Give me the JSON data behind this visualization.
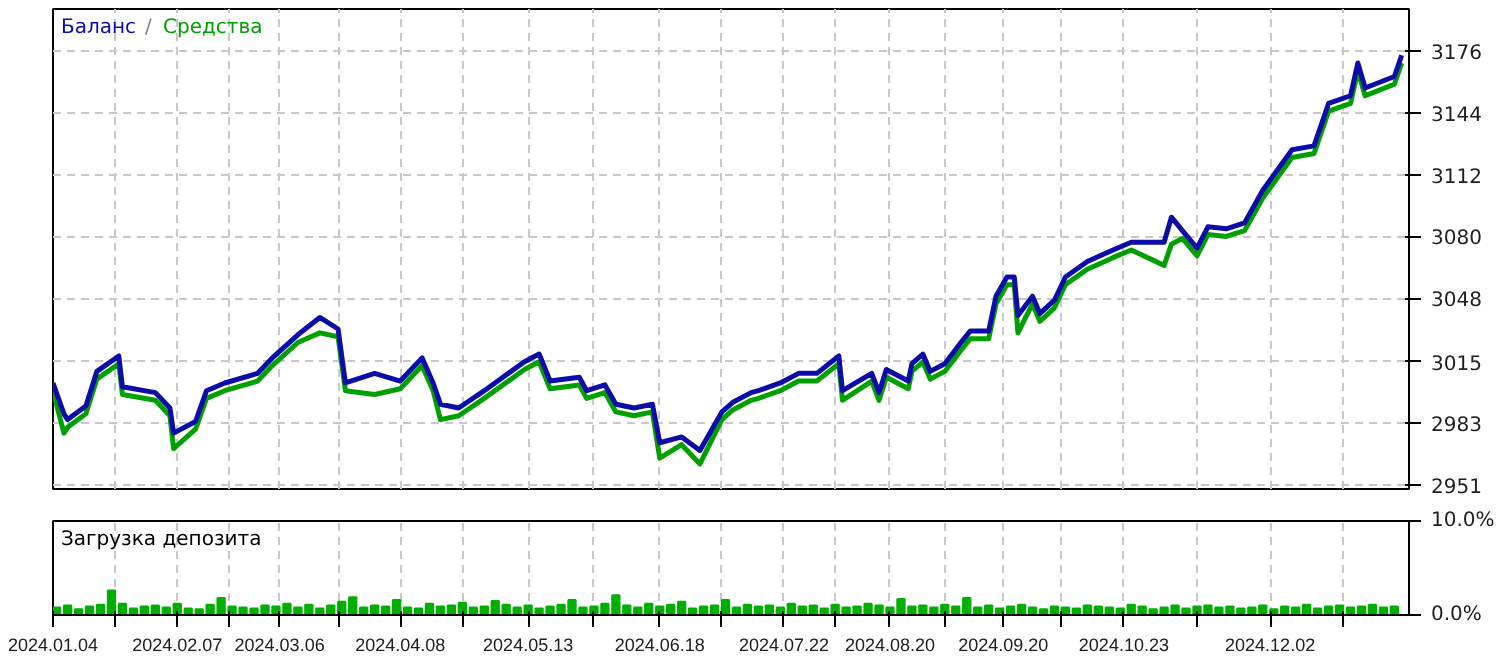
{
  "chart_data": [
    {
      "type": "line",
      "annotations": [
        "/"
      ],
      "legend": "top left",
      "grid": true,
      "tick_labels": "y",
      "line_style": "solid",
      "xlim": [
        "2024-01-04",
        "2025-01-09"
      ],
      "ylim": [
        2949,
        3198
      ],
      "xticks": [
        {
          "value": "2024-01-04",
          "label": null
        },
        {
          "value": "2024-01-21",
          "label": null
        },
        {
          "value": "2024-02-07",
          "label": null
        },
        {
          "value": "2024-02-21",
          "label": null
        },
        {
          "value": "2024-03-06",
          "label": null
        },
        {
          "value": "2024-03-22",
          "label": null
        },
        {
          "value": "2024-04-08",
          "label": null
        },
        {
          "value": "2024-04-25",
          "label": null
        },
        {
          "value": "2024-05-13",
          "label": null
        },
        {
          "value": "2024-05-31",
          "label": null
        },
        {
          "value": "2024-06-18",
          "label": null
        },
        {
          "value": "2024-07-05",
          "label": null
        },
        {
          "value": "2024-07-22",
          "label": null
        },
        {
          "value": "2024-08-05",
          "label": null
        },
        {
          "value": "2024-08-20",
          "label": null
        },
        {
          "value": "2024-09-04",
          "label": null
        },
        {
          "value": "2024-09-20",
          "label": null
        },
        {
          "value": "2024-10-06",
          "label": null
        },
        {
          "value": "2024-10-23",
          "label": null
        },
        {
          "value": "2024-11-12",
          "label": null
        },
        {
          "value": "2024-12-02",
          "label": null
        },
        {
          "value": "2024-12-22",
          "label": null
        }
      ],
      "yticks": [
        2951,
        2983,
        3015,
        3048,
        3080,
        3112,
        3144,
        3176
      ],
      "series": [
        {
          "name": "Средства",
          "color": "#00a000",
          "x": [
            "2024-01-04",
            "2024-01-07",
            "2024-01-08",
            "2024-01-13",
            "2024-01-16",
            "2024-01-22",
            "2024-01-23",
            "2024-02-01",
            "2024-02-05",
            "2024-02-06",
            "2024-02-12",
            "2024-02-15",
            "2024-02-20",
            "2024-02-29",
            "2024-03-04",
            "2024-03-11",
            "2024-03-17",
            "2024-03-22",
            "2024-03-24",
            "2024-04-01",
            "2024-04-08",
            "2024-04-14",
            "2024-04-17",
            "2024-04-19",
            "2024-04-24",
            "2024-05-01",
            "2024-05-12",
            "2024-05-16",
            "2024-05-19",
            "2024-05-27",
            "2024-05-29",
            "2024-06-03",
            "2024-06-06",
            "2024-06-11",
            "2024-06-16",
            "2024-06-18",
            "2024-06-24",
            "2024-06-29",
            "2024-07-05",
            "2024-07-08",
            "2024-07-13",
            "2024-07-15",
            "2024-07-21",
            "2024-07-26",
            "2024-07-31",
            "2024-08-06",
            "2024-08-07",
            "2024-08-15",
            "2024-08-17",
            "2024-08-19",
            "2024-08-25",
            "2024-08-26",
            "2024-08-29",
            "2024-08-31",
            "2024-09-04",
            "2024-09-08",
            "2024-09-11",
            "2024-09-16",
            "2024-09-18",
            "2024-09-21",
            "2024-09-23",
            "2024-09-24",
            "2024-09-28",
            "2024-09-30",
            "2024-10-04",
            "2024-10-07",
            "2024-10-13",
            "2024-10-20",
            "2024-10-25",
            "2024-11-03",
            "2024-11-05",
            "2024-11-08",
            "2024-11-12",
            "2024-11-15",
            "2024-11-20",
            "2024-11-25",
            "2024-11-30",
            "2024-12-08",
            "2024-12-14",
            "2024-12-18",
            "2024-12-24",
            "2024-12-26",
            "2024-12-28",
            "2025-01-05",
            "2025-01-07"
          ],
          "values": [
            3000,
            2978,
            2981,
            2988,
            3006,
            3014,
            2998,
            2995,
            2987,
            2970,
            2980,
            2996,
            3000,
            3005,
            3013,
            3025,
            3030,
            3028,
            3000,
            2998,
            3001,
            3013,
            3000,
            2985,
            2987,
            2996,
            3011,
            3015,
            3001,
            3003,
            2996,
            2999,
            2989,
            2987,
            2989,
            2965,
            2972,
            2962,
            2985,
            2990,
            2995,
            2996,
            3000,
            3005,
            3005,
            3014,
            2995,
            3005,
            2995,
            3007,
            3001,
            3010,
            3015,
            3006,
            3010,
            3020,
            3027,
            3027,
            3045,
            3055,
            3055,
            3030,
            3045,
            3036,
            3043,
            3055,
            3063,
            3069,
            3073,
            3065,
            3076,
            3079,
            3070,
            3081,
            3080,
            3083,
            3100,
            3121,
            3123,
            3145,
            3149,
            3166,
            3153,
            3159,
            3170
          ]
        },
        {
          "name": "Баланс",
          "color": "#0c0ca8",
          "x": [
            "2024-01-04",
            "2024-01-07",
            "2024-01-08",
            "2024-01-13",
            "2024-01-16",
            "2024-01-22",
            "2024-01-23",
            "2024-02-01",
            "2024-02-05",
            "2024-02-06",
            "2024-02-12",
            "2024-02-15",
            "2024-02-20",
            "2024-02-29",
            "2024-03-04",
            "2024-03-11",
            "2024-03-17",
            "2024-03-22",
            "2024-03-24",
            "2024-04-01",
            "2024-04-08",
            "2024-04-14",
            "2024-04-17",
            "2024-04-19",
            "2024-04-24",
            "2024-05-01",
            "2024-05-12",
            "2024-05-16",
            "2024-05-19",
            "2024-05-27",
            "2024-05-29",
            "2024-06-03",
            "2024-06-06",
            "2024-06-11",
            "2024-06-16",
            "2024-06-18",
            "2024-06-24",
            "2024-06-29",
            "2024-07-05",
            "2024-07-08",
            "2024-07-13",
            "2024-07-15",
            "2024-07-21",
            "2024-07-26",
            "2024-07-31",
            "2024-08-06",
            "2024-08-07",
            "2024-08-15",
            "2024-08-17",
            "2024-08-19",
            "2024-08-25",
            "2024-08-26",
            "2024-08-29",
            "2024-08-31",
            "2024-09-04",
            "2024-09-08",
            "2024-09-11",
            "2024-09-16",
            "2024-09-18",
            "2024-09-21",
            "2024-09-23",
            "2024-09-24",
            "2024-09-28",
            "2024-09-30",
            "2024-10-04",
            "2024-10-07",
            "2024-10-13",
            "2024-10-20",
            "2024-10-25",
            "2024-11-03",
            "2024-11-05",
            "2024-11-08",
            "2024-11-12",
            "2024-11-15",
            "2024-11-20",
            "2024-11-25",
            "2024-11-30",
            "2024-12-08",
            "2024-12-14",
            "2024-12-18",
            "2024-12-24",
            "2024-12-26",
            "2024-12-28",
            "2025-01-05",
            "2025-01-07"
          ],
          "values": [
            3004,
            2988,
            2985,
            2992,
            3010,
            3018,
            3002,
            2999,
            2991,
            2978,
            2984,
            3000,
            3004,
            3009,
            3017,
            3029,
            3038,
            3032,
            3004,
            3009,
            3005,
            3017,
            3004,
            2993,
            2991,
            3000,
            3015,
            3019,
            3005,
            3007,
            3000,
            3003,
            2993,
            2991,
            2993,
            2973,
            2976,
            2969,
            2989,
            2994,
            2999,
            3000,
            3004,
            3009,
            3009,
            3018,
            3000,
            3009,
            2999,
            3011,
            3005,
            3014,
            3019,
            3010,
            3014,
            3024,
            3031,
            3031,
            3049,
            3059,
            3059,
            3039,
            3049,
            3040,
            3047,
            3059,
            3067,
            3073,
            3077,
            3077,
            3090,
            3083,
            3074,
            3085,
            3084,
            3087,
            3104,
            3125,
            3127,
            3149,
            3153,
            3170,
            3157,
            3163,
            3174
          ]
        }
      ]
    },
    {
      "type": "bar",
      "title": "Загрузка депозита",
      "grid": "x",
      "color": "#00b000",
      "xlim": [
        "2024-01-04",
        "2025-01-09"
      ],
      "ylim": [
        0,
        10
      ],
      "xticks": [
        {
          "value": "2024-01-04",
          "label": "2024.01.04"
        },
        {
          "value": "2024-01-21",
          "label": null
        },
        {
          "value": "2024-02-07",
          "label": "2024.02.07"
        },
        {
          "value": "2024-02-21",
          "label": null
        },
        {
          "value": "2024-03-06",
          "label": "2024.03.06"
        },
        {
          "value": "2024-03-22",
          "label": null
        },
        {
          "value": "2024-04-08",
          "label": "2024.04.08"
        },
        {
          "value": "2024-04-25",
          "label": null
        },
        {
          "value": "2024-05-13",
          "label": "2024.05.13"
        },
        {
          "value": "2024-05-31",
          "label": null
        },
        {
          "value": "2024-06-18",
          "label": "2024.06.18"
        },
        {
          "value": "2024-07-05",
          "label": null
        },
        {
          "value": "2024-07-22",
          "label": "2024.07.22"
        },
        {
          "value": "2024-08-05",
          "label": null
        },
        {
          "value": "2024-08-20",
          "label": "2024.08.20"
        },
        {
          "value": "2024-09-04",
          "label": null
        },
        {
          "value": "2024-09-20",
          "label": "2024.09.20"
        },
        {
          "value": "2024-10-06",
          "label": null
        },
        {
          "value": "2024-10-23",
          "label": "2024.10.23"
        },
        {
          "value": "2024-11-12",
          "label": null
        },
        {
          "value": "2024-12-02",
          "label": "2024.12.02"
        },
        {
          "value": "2024-12-22",
          "label": null
        }
      ],
      "yticks": [
        {
          "value": 0,
          "label": "0.0%"
        },
        {
          "value": 10,
          "label": "10.0%"
        }
      ],
      "x": [
        "2024-01-05",
        "2024-01-08",
        "2024-01-11",
        "2024-01-14",
        "2024-01-17",
        "2024-01-20",
        "2024-01-23",
        "2024-01-26",
        "2024-01-29",
        "2024-02-01",
        "2024-02-04",
        "2024-02-07",
        "2024-02-10",
        "2024-02-13",
        "2024-02-16",
        "2024-02-19",
        "2024-02-22",
        "2024-02-25",
        "2024-02-28",
        "2024-03-02",
        "2024-03-05",
        "2024-03-08",
        "2024-03-11",
        "2024-03-14",
        "2024-03-17",
        "2024-03-20",
        "2024-03-23",
        "2024-03-26",
        "2024-03-29",
        "2024-04-01",
        "2024-04-04",
        "2024-04-07",
        "2024-04-10",
        "2024-04-13",
        "2024-04-16",
        "2024-04-19",
        "2024-04-22",
        "2024-04-25",
        "2024-04-28",
        "2024-05-01",
        "2024-05-04",
        "2024-05-07",
        "2024-05-10",
        "2024-05-13",
        "2024-05-16",
        "2024-05-19",
        "2024-05-22",
        "2024-05-25",
        "2024-05-28",
        "2024-05-31",
        "2024-06-03",
        "2024-06-06",
        "2024-06-09",
        "2024-06-12",
        "2024-06-15",
        "2024-06-18",
        "2024-06-21",
        "2024-06-24",
        "2024-06-27",
        "2024-06-30",
        "2024-07-03",
        "2024-07-06",
        "2024-07-09",
        "2024-07-12",
        "2024-07-15",
        "2024-07-18",
        "2024-07-21",
        "2024-07-24",
        "2024-07-27",
        "2024-07-30",
        "2024-08-02",
        "2024-08-05",
        "2024-08-08",
        "2024-08-11",
        "2024-08-14",
        "2024-08-17",
        "2024-08-20",
        "2024-08-23",
        "2024-08-26",
        "2024-08-29",
        "2024-09-01",
        "2024-09-04",
        "2024-09-07",
        "2024-09-10",
        "2024-09-13",
        "2024-09-16",
        "2024-09-19",
        "2024-09-22",
        "2024-09-25",
        "2024-09-28",
        "2024-10-01",
        "2024-10-04",
        "2024-10-07",
        "2024-10-10",
        "2024-10-13",
        "2024-10-16",
        "2024-10-19",
        "2024-10-22",
        "2024-10-25",
        "2024-10-28",
        "2024-10-31",
        "2024-11-03",
        "2024-11-06",
        "2024-11-09",
        "2024-11-12",
        "2024-11-15",
        "2024-11-18",
        "2024-11-21",
        "2024-11-24",
        "2024-11-27",
        "2024-11-30",
        "2024-12-03",
        "2024-12-06",
        "2024-12-09",
        "2024-12-12",
        "2024-12-15",
        "2024-12-18",
        "2024-12-21",
        "2024-12-24",
        "2024-12-27",
        "2024-12-30",
        "2025-01-02",
        "2025-01-05"
      ],
      "values": [
        0.8,
        1.0,
        0.6,
        0.9,
        1.1,
        2.6,
        1.2,
        0.7,
        0.9,
        1.0,
        0.8,
        1.2,
        0.7,
        0.6,
        1.1,
        1.8,
        0.9,
        0.8,
        0.7,
        1.0,
        0.9,
        1.2,
        0.8,
        1.1,
        0.7,
        1.0,
        1.4,
        1.9,
        0.8,
        1.0,
        0.9,
        1.6,
        0.8,
        0.7,
        1.2,
        0.9,
        1.0,
        1.3,
        0.8,
        0.9,
        1.5,
        1.1,
        0.8,
        1.0,
        0.7,
        0.9,
        1.1,
        1.6,
        0.8,
        0.9,
        1.2,
        2.1,
        1.0,
        0.8,
        1.2,
        0.9,
        1.1,
        1.4,
        0.7,
        0.9,
        1.0,
        1.6,
        0.8,
        1.1,
        0.9,
        1.0,
        0.8,
        1.2,
        0.9,
        1.0,
        0.7,
        1.1,
        0.8,
        0.9,
        1.2,
        1.0,
        0.8,
        1.7,
        0.9,
        1.0,
        0.8,
        1.1,
        0.9,
        1.8,
        0.8,
        1.0,
        0.7,
        0.9,
        1.1,
        0.8,
        0.6,
        0.9,
        0.8,
        0.7,
        1.0,
        0.9,
        0.8,
        0.7,
        1.1,
        0.9,
        0.6,
        0.8,
        1.0,
        0.7,
        0.9,
        1.0,
        0.8,
        0.9,
        0.7,
        0.8,
        1.0,
        0.6,
        0.9,
        0.8,
        1.1,
        0.7,
        0.9,
        1.0,
        0.8,
        0.9,
        1.1,
        0.8,
        0.9
      ]
    }
  ]
}
